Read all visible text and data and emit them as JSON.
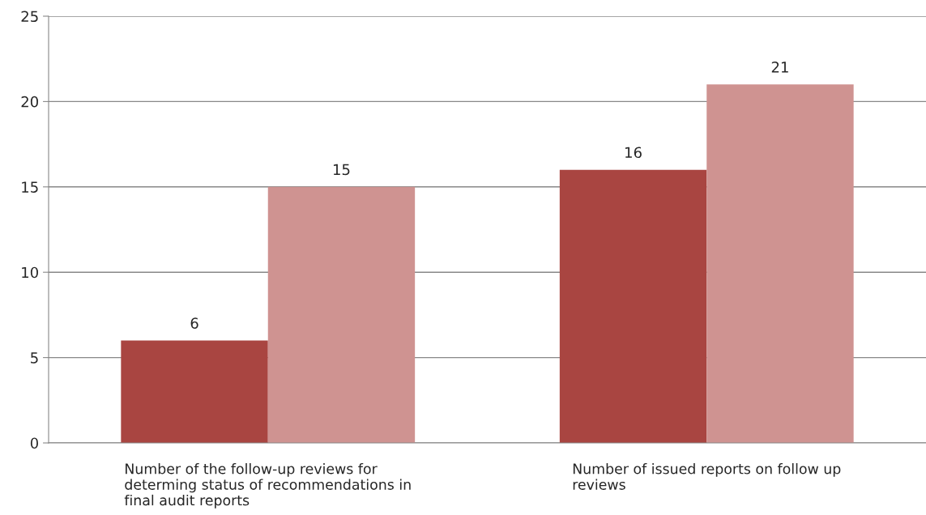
{
  "chart_data": {
    "type": "bar",
    "categories": [
      "Number of the follow-up reviews for\ndeterming status of recommendations in\nfinal audit reports",
      "Number of issued reports on follow up\nreviews"
    ],
    "series": [
      {
        "color": "#a94541",
        "values": [
          6,
          16
        ]
      },
      {
        "color": "#cf9391",
        "values": [
          15,
          21
        ]
      }
    ],
    "ylim": [
      0,
      25
    ],
    "yticks": [
      0,
      5,
      10,
      15,
      20,
      25
    ],
    "grid": "y",
    "data_labels": true,
    "legend": false
  }
}
